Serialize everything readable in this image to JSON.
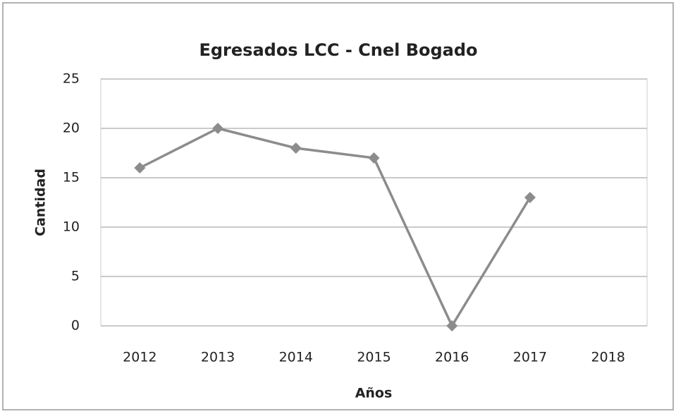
{
  "chart_data": {
    "type": "line",
    "title": "Egresados LCC - Cnel Bogado",
    "x_label": "Años",
    "y_label": "Cantidad",
    "categories": [
      "2012",
      "2013",
      "2014",
      "2015",
      "2016",
      "2017",
      "2018"
    ],
    "values": [
      16,
      20,
      18,
      17,
      0,
      13,
      null
    ],
    "color": "#8c8c8c",
    "ylim": [
      0,
      25
    ],
    "yticks": [
      0,
      5,
      10,
      15,
      20,
      25
    ],
    "grid": true
  }
}
